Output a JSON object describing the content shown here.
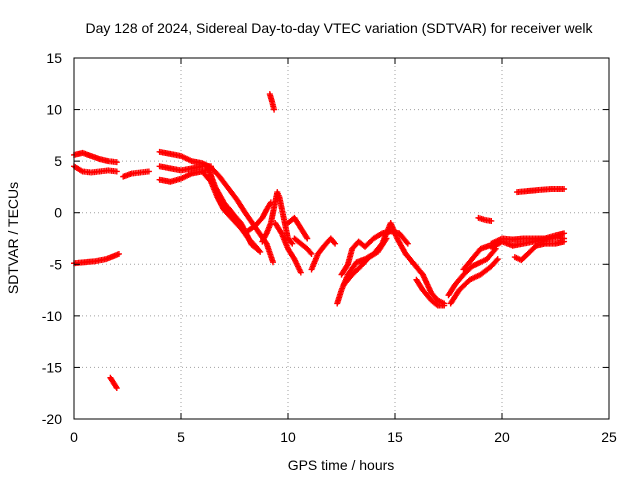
{
  "chart_data": {
    "type": "scatter",
    "title": "Day 128 of 2024, Sidereal Day-to-day VTEC variation (SDTVAR) for receiver welk",
    "xlabel": "GPS time / hours",
    "ylabel": "SDTVAR / TECUs",
    "xlim": [
      0,
      25
    ],
    "ylim": [
      -20,
      15
    ],
    "x_ticks": [
      0,
      5,
      10,
      15,
      20,
      25
    ],
    "y_ticks": [
      -20,
      -15,
      -10,
      -5,
      0,
      5,
      10,
      15
    ],
    "x_tick_labels": [
      "0",
      "5",
      "10",
      "15",
      "20",
      "25"
    ],
    "y_tick_labels": [
      "-20",
      "-15",
      "-10",
      "-5",
      "0",
      "5",
      "10",
      "15"
    ],
    "grid": true,
    "marker": "+",
    "series": [
      {
        "name": "SDTVAR",
        "color": "#ff0000",
        "tracks": [
          [
            [
              0.0,
              5.6
            ],
            [
              0.4,
              5.8
            ],
            [
              0.8,
              5.5
            ],
            [
              1.2,
              5.2
            ],
            [
              1.6,
              5.0
            ],
            [
              2.0,
              4.9
            ]
          ],
          [
            [
              0.0,
              4.5
            ],
            [
              0.4,
              4.0
            ],
            [
              0.8,
              3.9
            ],
            [
              1.2,
              4.0
            ],
            [
              1.6,
              4.1
            ],
            [
              2.0,
              4.0
            ]
          ],
          [
            [
              0.0,
              -4.9
            ],
            [
              0.5,
              -4.8
            ],
            [
              1.0,
              -4.7
            ],
            [
              1.5,
              -4.5
            ],
            [
              2.1,
              -4.0
            ]
          ],
          [
            [
              1.7,
              -16.0
            ],
            [
              1.85,
              -16.5
            ],
            [
              2.0,
              -17.0
            ]
          ],
          [
            [
              2.3,
              3.5
            ],
            [
              2.7,
              3.8
            ],
            [
              3.1,
              3.9
            ],
            [
              3.5,
              4.0
            ]
          ],
          [
            [
              4.0,
              4.5
            ],
            [
              4.5,
              4.3
            ],
            [
              5.0,
              4.1
            ],
            [
              5.5,
              4.3
            ],
            [
              6.0,
              4.5
            ],
            [
              6.4,
              4.5
            ]
          ],
          [
            [
              4.0,
              3.2
            ],
            [
              4.5,
              3.0
            ],
            [
              5.0,
              3.3
            ],
            [
              5.5,
              3.8
            ],
            [
              6.0,
              4.0
            ],
            [
              6.3,
              4.2
            ]
          ],
          [
            [
              4.0,
              5.9
            ],
            [
              4.5,
              5.7
            ],
            [
              5.0,
              5.5
            ],
            [
              5.5,
              5.0
            ],
            [
              6.0,
              4.8
            ],
            [
              6.4,
              4.4
            ],
            [
              6.8,
              3.5
            ],
            [
              7.2,
              2.4
            ],
            [
              7.6,
              1.3
            ],
            [
              8.0,
              0.0
            ],
            [
              8.5,
              -1.5
            ],
            [
              9.0,
              -3.0
            ],
            [
              9.3,
              -4.8
            ]
          ],
          [
            [
              6.0,
              4.0
            ],
            [
              6.4,
              3.0
            ],
            [
              6.7,
              1.5
            ],
            [
              7.0,
              0.3
            ],
            [
              7.4,
              -0.6
            ],
            [
              7.8,
              -1.5
            ],
            [
              8.2,
              -2.6
            ],
            [
              8.5,
              -3.3
            ],
            [
              8.7,
              -3.8
            ]
          ],
          [
            [
              6.3,
              4.2
            ],
            [
              6.6,
              2.5
            ],
            [
              7.0,
              1.0
            ],
            [
              7.5,
              -0.5
            ],
            [
              8.0,
              -2.0
            ],
            [
              8.3,
              -3.0
            ]
          ],
          [
            [
              7.2,
              0.5
            ],
            [
              7.5,
              -0.3
            ],
            [
              7.8,
              -1.0
            ],
            [
              8.0,
              -1.8
            ],
            [
              8.3,
              -3.1
            ],
            [
              8.6,
              -3.6
            ]
          ],
          [
            [
              9.15,
              11.5
            ],
            [
              9.25,
              10.8
            ],
            [
              9.35,
              10.0
            ]
          ],
          [
            [
              8.1,
              -1.8
            ],
            [
              8.5,
              -1.2
            ],
            [
              8.8,
              -0.5
            ],
            [
              9.0,
              0.3
            ],
            [
              9.2,
              1.0
            ]
          ],
          [
            [
              8.8,
              -2.8
            ],
            [
              9.0,
              -2.0
            ],
            [
              9.2,
              -1.0
            ],
            [
              9.5,
              2.0
            ],
            [
              9.6,
              1.5
            ],
            [
              9.8,
              -0.5
            ],
            [
              10.0,
              -2.5
            ],
            [
              10.2,
              -3.0
            ]
          ],
          [
            [
              9.4,
              -1.0
            ],
            [
              9.7,
              -2.0
            ],
            [
              10.0,
              -3.5
            ],
            [
              10.3,
              -4.5
            ],
            [
              10.6,
              -5.8
            ]
          ],
          [
            [
              10.0,
              -1.0
            ],
            [
              10.3,
              -0.5
            ],
            [
              10.6,
              -1.5
            ],
            [
              10.9,
              -2.5
            ]
          ],
          [
            [
              10.3,
              -2.5
            ],
            [
              10.6,
              -3.0
            ],
            [
              10.9,
              -3.5
            ],
            [
              11.1,
              -4.0
            ]
          ],
          [
            [
              11.1,
              -5.5
            ],
            [
              11.4,
              -4.0
            ],
            [
              11.7,
              -3.2
            ],
            [
              12.0,
              -2.5
            ],
            [
              12.2,
              -3.0
            ]
          ],
          [
            [
              12.3,
              -8.8
            ],
            [
              12.5,
              -7.5
            ],
            [
              12.8,
              -6.0
            ],
            [
              13.2,
              -4.8
            ],
            [
              13.6,
              -4.5
            ],
            [
              14.0,
              -4.0
            ],
            [
              14.4,
              -3.0
            ],
            [
              14.8,
              -1.0
            ],
            [
              15.1,
              -2.5
            ],
            [
              15.5,
              -4.0
            ],
            [
              15.9,
              -5.0
            ],
            [
              16.3,
              -6.0
            ]
          ],
          [
            [
              12.5,
              -6.0
            ],
            [
              12.8,
              -5.0
            ],
            [
              13.0,
              -3.5
            ],
            [
              13.3,
              -2.8
            ],
            [
              13.6,
              -3.3
            ],
            [
              14.0,
              -2.5
            ],
            [
              14.4,
              -2.0
            ],
            [
              14.8,
              -1.8
            ],
            [
              15.2,
              -2.0
            ],
            [
              15.6,
              -3.0
            ]
          ],
          [
            [
              12.6,
              -7.0
            ],
            [
              13.0,
              -6.0
            ],
            [
              13.4,
              -5.2
            ],
            [
              13.8,
              -4.3
            ],
            [
              14.2,
              -3.8
            ],
            [
              14.6,
              -2.5
            ]
          ],
          [
            [
              15.5,
              -4.0
            ],
            [
              15.9,
              -5.0
            ],
            [
              16.3,
              -6.0
            ],
            [
              16.7,
              -7.8
            ],
            [
              17.0,
              -8.5
            ],
            [
              17.3,
              -8.8
            ]
          ],
          [
            [
              16.0,
              -6.5
            ],
            [
              16.3,
              -7.5
            ],
            [
              16.7,
              -8.5
            ],
            [
              17.0,
              -9.0
            ],
            [
              17.3,
              -9.0
            ]
          ],
          [
            [
              17.5,
              -8.0
            ],
            [
              17.8,
              -7.0
            ],
            [
              18.2,
              -6.0
            ],
            [
              18.6,
              -5.2
            ],
            [
              19.0,
              -4.8
            ],
            [
              19.3,
              -4.5
            ],
            [
              19.7,
              -3.5
            ]
          ],
          [
            [
              17.6,
              -8.8
            ],
            [
              18.0,
              -7.5
            ],
            [
              18.5,
              -6.5
            ],
            [
              19.0,
              -6.0
            ],
            [
              19.5,
              -5.2
            ],
            [
              19.8,
              -4.5
            ]
          ],
          [
            [
              18.2,
              -5.5
            ],
            [
              18.6,
              -4.5
            ],
            [
              19.0,
              -3.5
            ],
            [
              19.4,
              -3.2
            ],
            [
              19.7,
              -3.5
            ]
          ],
          [
            [
              18.9,
              -0.5
            ],
            [
              19.2,
              -0.7
            ],
            [
              19.5,
              -0.8
            ]
          ],
          [
            [
              19.5,
              -3.0
            ],
            [
              20.0,
              -2.5
            ],
            [
              20.5,
              -2.6
            ],
            [
              21.0,
              -2.5
            ],
            [
              21.5,
              -2.5
            ],
            [
              22.0,
              -2.5
            ],
            [
              22.5,
              -2.2
            ],
            [
              22.9,
              -2.0
            ]
          ],
          [
            [
              19.6,
              -3.3
            ],
            [
              20.0,
              -2.8
            ],
            [
              20.5,
              -3.2
            ],
            [
              21.0,
              -3.0
            ],
            [
              21.5,
              -2.8
            ],
            [
              22.0,
              -2.6
            ],
            [
              22.5,
              -2.4
            ],
            [
              22.9,
              -2.5
            ]
          ],
          [
            [
              20.6,
              -4.3
            ],
            [
              20.9,
              -4.6
            ],
            [
              21.2,
              -4.0
            ],
            [
              21.6,
              -3.2
            ],
            [
              22.0,
              -3.0
            ],
            [
              22.5,
              -3.0
            ],
            [
              22.9,
              -2.8
            ]
          ],
          [
            [
              20.7,
              2.0
            ],
            [
              21.2,
              2.1
            ],
            [
              21.7,
              2.2
            ],
            [
              22.3,
              2.3
            ],
            [
              22.9,
              2.3
            ]
          ]
        ]
      }
    ]
  }
}
